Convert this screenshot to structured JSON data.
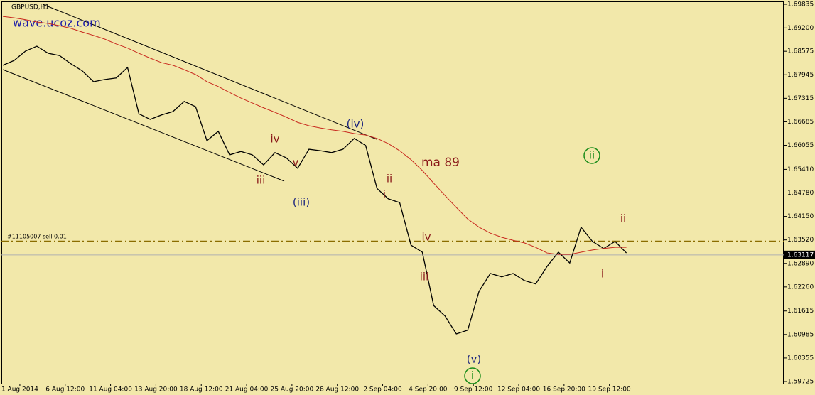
{
  "chart_data": {
    "type": "line",
    "title": "GBPUSD,H1",
    "watermark": "wave.ucoz.com",
    "xlim": [
      -0.125,
      68.875
    ],
    "xticks": [
      {
        "value": 1.5,
        "label": "1 Aug 2014"
      },
      {
        "value": 5.5,
        "label": "6 Aug 12:00"
      },
      {
        "value": 9.5,
        "label": "11 Aug 04:00"
      },
      {
        "value": 13.5,
        "label": "13 Aug 20:00"
      },
      {
        "value": 17.5,
        "label": "18 Aug 12:00"
      },
      {
        "value": 21.5,
        "label": "21 Aug 04:00"
      },
      {
        "value": 25.5,
        "label": "25 Aug 20:00"
      },
      {
        "value": 29.5,
        "label": "28 Aug 12:00"
      },
      {
        "value": 33.5,
        "label": "2 Sep 04:00"
      },
      {
        "value": 37.5,
        "label": "4 Sep 20:00"
      },
      {
        "value": 41.5,
        "label": "9 Sep 12:00"
      },
      {
        "value": 45.5,
        "label": "12 Sep 04:00"
      },
      {
        "value": 49.5,
        "label": "16 Sep 20:00"
      },
      {
        "value": 53.5,
        "label": "19 Sep 12:00"
      }
    ],
    "ylim": [
      1.59725,
      1.69835
    ],
    "yticks": [
      {
        "value": 1.69835,
        "label": "1.69835"
      },
      {
        "value": 1.692,
        "label": "1.69200"
      },
      {
        "value": 1.68575,
        "label": "1.68575"
      },
      {
        "value": 1.67945,
        "label": "1.67945"
      },
      {
        "value": 1.67315,
        "label": "1.67315"
      },
      {
        "value": 1.66685,
        "label": "1.66685"
      },
      {
        "value": 1.66055,
        "label": "1.66055"
      },
      {
        "value": 1.6541,
        "label": "1.65410"
      },
      {
        "value": 1.6478,
        "label": "1.64780"
      },
      {
        "value": 1.6415,
        "label": "1.64150"
      },
      {
        "value": 1.6352,
        "label": "1.63520"
      },
      {
        "value": 1.6289,
        "label": "1.62890"
      },
      {
        "value": 1.6226,
        "label": "1.62260"
      },
      {
        "value": 1.61615,
        "label": "1.61615"
      },
      {
        "value": 1.60985,
        "label": "1.60985"
      },
      {
        "value": 1.60355,
        "label": "1.60355"
      },
      {
        "value": 1.59725,
        "label": "1.59725"
      }
    ],
    "series": [
      {
        "name": "GBPUSD",
        "color": "#000000",
        "values": [
          1.682,
          1.6833,
          1.6858,
          1.6871,
          1.6852,
          1.6846,
          1.6824,
          1.6805,
          1.6776,
          1.6782,
          1.6786,
          1.6814,
          1.669,
          1.6675,
          1.6687,
          1.6696,
          1.6723,
          1.6709,
          1.6618,
          1.6643,
          1.658,
          1.6589,
          1.658,
          1.6553,
          1.6586,
          1.6572,
          1.6544,
          1.6595,
          1.6591,
          1.6586,
          1.6595,
          1.6624,
          1.6605,
          1.649,
          1.6462,
          1.6452,
          1.6338,
          1.6319,
          1.6176,
          1.6148,
          1.61,
          1.611,
          1.6214,
          1.6262,
          1.6253,
          1.6262,
          1.6243,
          1.6234,
          1.6281,
          1.6319,
          1.629,
          1.6386,
          1.6348,
          1.6329,
          1.6348,
          1.6317
        ]
      },
      {
        "name": "ma 89",
        "color": "#c8281e",
        "values": [
          1.6951,
          1.6947,
          1.6942,
          1.6936,
          1.6932,
          1.6926,
          1.6919,
          1.6909,
          1.69,
          1.689,
          1.6877,
          1.6866,
          1.6852,
          1.6839,
          1.6827,
          1.682,
          1.6808,
          1.6795,
          1.6776,
          1.6763,
          1.6747,
          1.6732,
          1.6719,
          1.6706,
          1.6694,
          1.6681,
          1.6667,
          1.6658,
          1.6652,
          1.6647,
          1.6643,
          1.6637,
          1.6633,
          1.6624,
          1.661,
          1.6591,
          1.6567,
          1.6538,
          1.6504,
          1.6471,
          1.6439,
          1.6408,
          1.6386,
          1.637,
          1.6359,
          1.6351,
          1.6344,
          1.6332,
          1.6317,
          1.6313,
          1.6313,
          1.6319,
          1.6325,
          1.6329,
          1.6332,
          1.6332
        ]
      }
    ],
    "order_line": {
      "label": "#11105007 sell 0.01",
      "value": 1.6348,
      "color": "#8b6d00"
    },
    "current_price": 1.63117,
    "annotations": [
      {
        "text": "iii",
        "color": "#8b1a1a"
      },
      {
        "text": "v",
        "color": "#8b1a1a"
      },
      {
        "text": "iv",
        "color": "#8b1a1a"
      },
      {
        "text": "(iii)",
        "color": "#1a237e"
      },
      {
        "text": "(iv)",
        "color": "#1a237e"
      },
      {
        "text": "ii",
        "color": "#8b1a1a"
      },
      {
        "text": "i",
        "color": "#8b1a1a"
      },
      {
        "text": "iv",
        "color": "#8b1a1a"
      },
      {
        "text": "iii",
        "color": "#8b1a1a"
      },
      {
        "text": "(v)",
        "color": "#1a237e"
      },
      {
        "text": "i",
        "color": "#1a8c1a",
        "circled": true
      },
      {
        "text": "ii",
        "color": "#1a8c1a",
        "circled": true
      },
      {
        "text": "ii",
        "color": "#8b1a1a"
      },
      {
        "text": "i",
        "color": "#8b1a1a"
      },
      {
        "text": "ma 89",
        "color": "#8b1a1a"
      }
    ]
  }
}
